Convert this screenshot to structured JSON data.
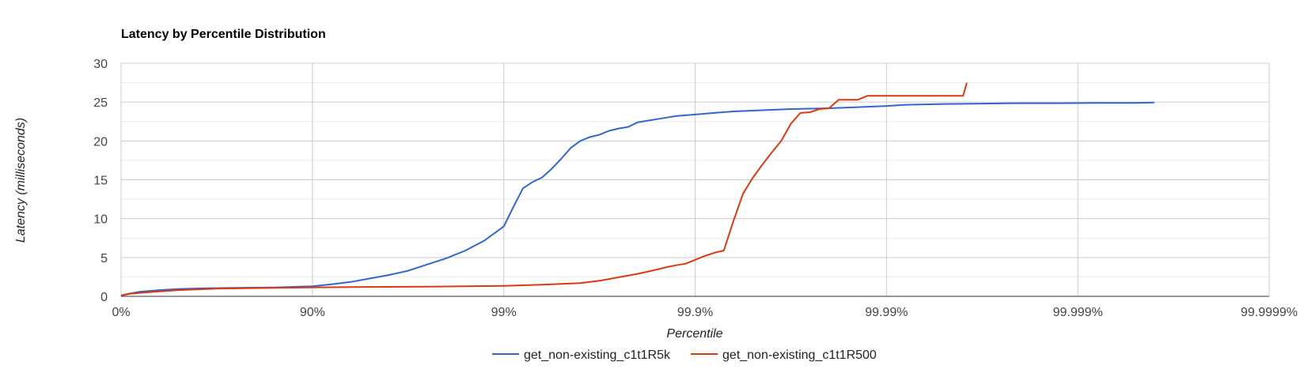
{
  "chart_data": {
    "type": "line",
    "title": "Latency by Percentile Distribution",
    "xlabel": "Percentile",
    "ylabel": "Latency (milliseconds)",
    "x_scale": "log-percentile (each major tick = one more nine)",
    "x_ticks": [
      "0%",
      "90%",
      "99%",
      "99.9%",
      "99.99%",
      "99.999%",
      "99.9999%"
    ],
    "xlim": [
      0,
      6
    ],
    "y_ticks": [
      0,
      5,
      10,
      15,
      20,
      25,
      30
    ],
    "ylim": [
      0,
      30
    ],
    "grid": true,
    "legend_position": "bottom",
    "series": [
      {
        "name": "get_non-existing_c1t1R5k",
        "color": "#3366cc",
        "x": [
          0,
          0.03,
          0.1,
          0.2,
          0.3,
          0.45,
          0.6,
          0.8,
          1.0,
          1.1,
          1.2,
          1.3,
          1.4,
          1.5,
          1.6,
          1.7,
          1.8,
          1.9,
          2.0,
          2.05,
          2.1,
          2.15,
          2.2,
          2.25,
          2.3,
          2.35,
          2.4,
          2.45,
          2.5,
          2.55,
          2.6,
          2.65,
          2.7,
          2.75,
          2.8,
          2.85,
          2.9,
          3.0,
          3.1,
          3.2,
          3.3,
          3.5,
          3.7,
          3.9,
          4.0,
          4.1,
          4.2,
          4.3,
          4.5,
          4.7,
          4.9,
          5.1,
          5.3,
          5.4
        ],
        "y": [
          0.1,
          0.3,
          0.6,
          0.8,
          0.95,
          1.05,
          1.1,
          1.15,
          1.3,
          1.55,
          1.85,
          2.3,
          2.75,
          3.3,
          4.1,
          4.9,
          5.9,
          7.2,
          9.0,
          11.5,
          13.9,
          14.7,
          15.3,
          16.4,
          17.7,
          19.1,
          20.0,
          20.5,
          20.8,
          21.3,
          21.6,
          21.8,
          22.4,
          22.6,
          22.8,
          23.0,
          23.2,
          23.4,
          23.6,
          23.8,
          23.9,
          24.1,
          24.2,
          24.4,
          24.5,
          24.65,
          24.7,
          24.75,
          24.8,
          24.85,
          24.85,
          24.9,
          24.9,
          24.95
        ]
      },
      {
        "name": "get_non-existing_c1t1R500",
        "color": "#dc3912",
        "x": [
          0,
          0.05,
          0.15,
          0.3,
          0.5,
          0.8,
          1.2,
          1.6,
          2.0,
          2.2,
          2.4,
          2.5,
          2.6,
          2.7,
          2.8,
          2.85,
          2.9,
          2.95,
          3.0,
          3.05,
          3.1,
          3.15,
          3.2,
          3.25,
          3.3,
          3.35,
          3.4,
          3.45,
          3.5,
          3.55,
          3.6,
          3.65,
          3.7,
          3.75,
          3.8,
          3.85,
          3.9,
          3.95,
          4.0,
          4.05,
          4.1,
          4.15,
          4.2,
          4.25,
          4.3,
          4.35,
          4.4,
          4.42
        ],
        "y": [
          0.1,
          0.35,
          0.55,
          0.8,
          1.0,
          1.1,
          1.2,
          1.25,
          1.35,
          1.5,
          1.7,
          2.0,
          2.45,
          2.9,
          3.45,
          3.75,
          4.0,
          4.2,
          4.7,
          5.2,
          5.6,
          5.9,
          9.7,
          13.2,
          15.2,
          16.9,
          18.5,
          20.0,
          22.2,
          23.6,
          23.7,
          24.1,
          24.2,
          25.3,
          25.3,
          25.3,
          25.8,
          25.8,
          25.8,
          25.8,
          25.8,
          25.8,
          25.8,
          25.8,
          25.8,
          25.8,
          25.8,
          27.5
        ]
      }
    ]
  }
}
